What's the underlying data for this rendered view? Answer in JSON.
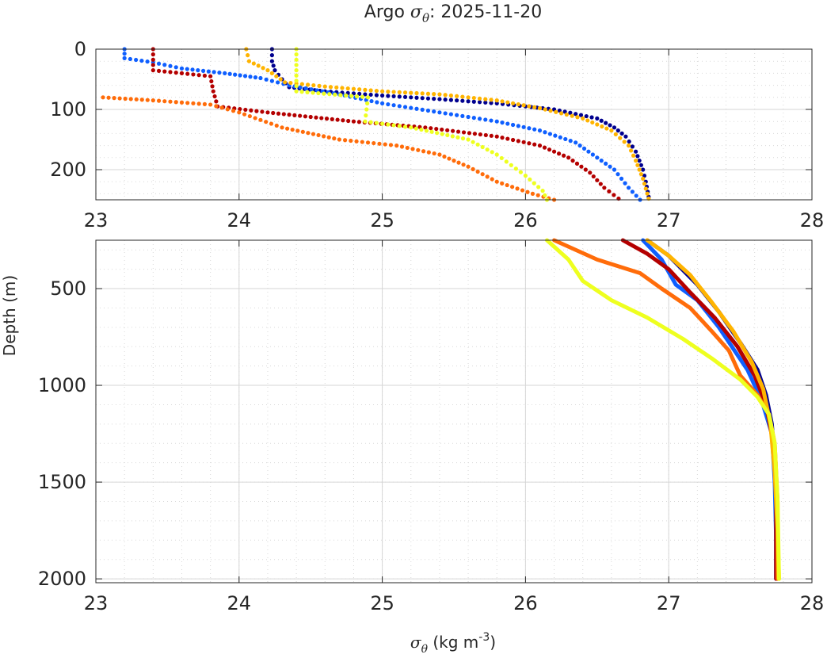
{
  "figure": {
    "title_prefix": "Argo ",
    "title_symbol": "σ",
    "title_subscript": "θ",
    "title_suffix": ": 2025-11-20",
    "ylabel": "Depth (m)",
    "xlabel_symbol": "σ",
    "xlabel_subscript": "θ",
    "xlabel_units": " (kg m",
    "xlabel_exponent": "-3",
    "xlabel_close": ")"
  },
  "chart_data": [
    {
      "type": "scatter",
      "name": "upper-panel",
      "xlim": [
        23,
        28
      ],
      "ylim": [
        0,
        250
      ],
      "y_reversed": true,
      "x_ticks": [
        "23",
        "24",
        "25",
        "26",
        "27",
        "28"
      ],
      "x_tick_values": [
        23,
        24,
        25,
        26,
        27,
        28
      ],
      "y_ticks": [
        "0",
        "100",
        "200"
      ],
      "y_tick_values": [
        0,
        100,
        200
      ],
      "grid": true,
      "series": [
        {
          "name": "dark-blue-float",
          "color": "#00008f",
          "points": [
            [
              24.23,
              0
            ],
            [
              24.23,
              20
            ],
            [
              24.25,
              35
            ],
            [
              24.3,
              50
            ],
            [
              24.35,
              63
            ],
            [
              24.6,
              70
            ],
            [
              25.0,
              77
            ],
            [
              25.4,
              83
            ],
            [
              25.8,
              90
            ],
            [
              26.2,
              100
            ],
            [
              26.5,
              115
            ],
            [
              26.62,
              130
            ],
            [
              26.7,
              145
            ],
            [
              26.77,
              170
            ],
            [
              26.82,
              200
            ],
            [
              26.84,
              220
            ],
            [
              26.86,
              245
            ]
          ]
        },
        {
          "name": "blue-float",
          "color": "#0f5fff",
          "points": [
            [
              23.2,
              0
            ],
            [
              23.2,
              15
            ],
            [
              23.4,
              22
            ],
            [
              23.6,
              32
            ],
            [
              23.9,
              40
            ],
            [
              24.15,
              48
            ],
            [
              24.35,
              60
            ],
            [
              24.7,
              75
            ],
            [
              25.0,
              90
            ],
            [
              25.4,
              105
            ],
            [
              25.8,
              120
            ],
            [
              26.1,
              135
            ],
            [
              26.35,
              155
            ],
            [
              26.5,
              180
            ],
            [
              26.62,
              200
            ],
            [
              26.72,
              230
            ],
            [
              26.8,
              250
            ]
          ]
        },
        {
          "name": "red-float",
          "color": "#b40000",
          "points": [
            [
              23.4,
              0
            ],
            [
              23.4,
              35
            ],
            [
              23.8,
              45
            ],
            [
              23.82,
              70
            ],
            [
              23.85,
              95
            ],
            [
              24.2,
              105
            ],
            [
              24.8,
              120
            ],
            [
              25.3,
              130
            ],
            [
              25.8,
              145
            ],
            [
              26.1,
              160
            ],
            [
              26.3,
              180
            ],
            [
              26.45,
              205
            ],
            [
              26.55,
              230
            ],
            [
              26.65,
              248
            ]
          ]
        },
        {
          "name": "orange-float",
          "color": "#ff6c0a",
          "points": [
            [
              23.05,
              80
            ],
            [
              23.4,
              85
            ],
            [
              23.8,
              92
            ],
            [
              24.0,
              105
            ],
            [
              24.3,
              130
            ],
            [
              24.7,
              150
            ],
            [
              25.1,
              160
            ],
            [
              25.4,
              175
            ],
            [
              25.6,
              195
            ],
            [
              25.8,
              220
            ],
            [
              26.05,
              240
            ],
            [
              26.2,
              250
            ]
          ]
        },
        {
          "name": "gold-float",
          "color": "#ffb400",
          "points": [
            [
              24.05,
              0
            ],
            [
              24.07,
              20
            ],
            [
              24.2,
              35
            ],
            [
              24.32,
              55
            ],
            [
              24.6,
              62
            ],
            [
              25.0,
              70
            ],
            [
              25.4,
              75
            ],
            [
              25.8,
              85
            ],
            [
              26.1,
              98
            ],
            [
              26.4,
              115
            ],
            [
              26.6,
              135
            ],
            [
              26.72,
              160
            ],
            [
              26.77,
              185
            ],
            [
              26.82,
              215
            ],
            [
              26.86,
              248
            ]
          ]
        },
        {
          "name": "yellow-float",
          "color": "#eeff1f",
          "points": [
            [
              24.4,
              0
            ],
            [
              24.4,
              70
            ],
            [
              24.9,
              80
            ],
            [
              24.88,
              120
            ],
            [
              25.2,
              130
            ],
            [
              25.6,
              150
            ],
            [
              25.8,
              175
            ],
            [
              26.0,
              210
            ],
            [
              26.12,
              235
            ],
            [
              26.15,
              250
            ]
          ]
        }
      ]
    },
    {
      "type": "line",
      "name": "lower-panel",
      "xlim": [
        23,
        28
      ],
      "ylim": [
        250,
        2020
      ],
      "y_reversed": true,
      "x_ticks": [
        "23",
        "24",
        "25",
        "26",
        "27",
        "28"
      ],
      "x_tick_values": [
        23,
        24,
        25,
        26,
        27,
        28
      ],
      "y_ticks": [
        "500",
        "1000",
        "1500",
        "2000"
      ],
      "y_tick_values": [
        500,
        1000,
        1500,
        2000
      ],
      "grid": true,
      "series": [
        {
          "name": "dark-blue-float",
          "color": "#00008f",
          "points": [
            [
              26.85,
              250
            ],
            [
              27.0,
              330
            ],
            [
              27.2,
              480
            ],
            [
              27.35,
              620
            ],
            [
              27.5,
              780
            ],
            [
              27.62,
              920
            ],
            [
              27.68,
              1050
            ],
            [
              27.72,
              1200
            ],
            [
              27.74,
              1400
            ],
            [
              27.75,
              1700
            ],
            [
              27.75,
              2000
            ]
          ]
        },
        {
          "name": "blue-float",
          "color": "#0f5fff",
          "points": [
            [
              26.82,
              250
            ],
            [
              26.95,
              350
            ],
            [
              27.05,
              480
            ],
            [
              27.2,
              560
            ],
            [
              27.35,
              700
            ],
            [
              27.55,
              920
            ],
            [
              27.65,
              1080
            ],
            [
              27.72,
              1250
            ],
            [
              27.74,
              1500
            ],
            [
              27.75,
              1800
            ],
            [
              27.75,
              2000
            ]
          ]
        },
        {
          "name": "red-float",
          "color": "#b40000",
          "points": [
            [
              26.68,
              250
            ],
            [
              26.85,
              320
            ],
            [
              27.0,
              400
            ],
            [
              27.15,
              520
            ],
            [
              27.32,
              650
            ],
            [
              27.48,
              800
            ],
            [
              27.6,
              950
            ],
            [
              27.68,
              1100
            ],
            [
              27.73,
              1300
            ],
            [
              27.75,
              1600
            ],
            [
              27.75,
              2000
            ]
          ]
        },
        {
          "name": "orange-float",
          "color": "#ff6c0a",
          "points": [
            [
              26.2,
              250
            ],
            [
              26.5,
              350
            ],
            [
              26.8,
              420
            ],
            [
              26.95,
              500
            ],
            [
              27.15,
              600
            ],
            [
              27.3,
              720
            ],
            [
              27.42,
              820
            ],
            [
              27.5,
              950
            ],
            [
              27.62,
              1050
            ],
            [
              27.7,
              1150
            ],
            [
              27.74,
              1300
            ],
            [
              27.76,
              1600
            ],
            [
              27.76,
              2000
            ]
          ]
        },
        {
          "name": "gold-float",
          "color": "#ffb400",
          "points": [
            [
              26.85,
              250
            ],
            [
              27.0,
              330
            ],
            [
              27.15,
              430
            ],
            [
              27.3,
              570
            ],
            [
              27.45,
              720
            ],
            [
              27.58,
              880
            ],
            [
              27.66,
              1020
            ],
            [
              27.71,
              1200
            ],
            [
              27.74,
              1450
            ],
            [
              27.76,
              1750
            ],
            [
              27.77,
              2000
            ]
          ]
        },
        {
          "name": "yellow-float",
          "color": "#eeff1f",
          "points": [
            [
              26.15,
              250
            ],
            [
              26.3,
              350
            ],
            [
              26.4,
              460
            ],
            [
              26.6,
              560
            ],
            [
              26.85,
              650
            ],
            [
              27.1,
              760
            ],
            [
              27.3,
              860
            ],
            [
              27.5,
              970
            ],
            [
              27.62,
              1060
            ],
            [
              27.7,
              1150
            ],
            [
              27.74,
              1300
            ],
            [
              27.76,
              1600
            ],
            [
              27.77,
              2000
            ]
          ]
        }
      ]
    }
  ]
}
